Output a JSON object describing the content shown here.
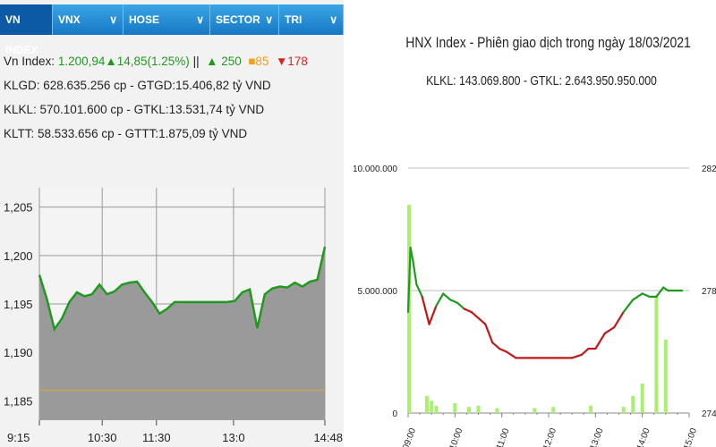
{
  "tabs": [
    {
      "label": "VN INDEX",
      "active": true
    },
    {
      "label": "VNX",
      "dropdown": true
    },
    {
      "label": "HOSE",
      "dropdown": true
    },
    {
      "label": "SECTOR",
      "dropdown": true
    },
    {
      "label": "TRI",
      "dropdown": true
    }
  ],
  "vn_index": {
    "label": "Vn Index:",
    "value": "1.200,94",
    "change": "▲14,85(1.25%)",
    "sep": "||",
    "up": "▲ 250",
    "flat": "■85",
    "down": "▼178",
    "klgd": "KLGD: 628.635.256 cp - GTGD:15.406,82 tỷ VND",
    "klkl": "KLKL: 570.101.600 cp - GTKL:13.531,74 tỷ VND",
    "kltt": "KLTT: 58.533.656 cp - GTTT:1.875,09 tỷ VND"
  },
  "hnx": {
    "title": "HNX Index - Phiên giao dịch trong ngày 18/03/2021",
    "subtitle": "KLKL: 143.069.800 - GTKL: 2.643.950.950.000"
  },
  "colors": {
    "tab_bg": "#1777c4",
    "up": "#1f9a1f",
    "down": "#c01818",
    "ref_line": "#c8a060",
    "volume": "#a8f070",
    "area": "#9a9a9a"
  },
  "chart_data": [
    {
      "type": "area",
      "x_ticks": [
        "9:15",
        "10:30",
        "11:30",
        "13:0",
        "14:48"
      ],
      "y_ticks": [
        "1,205",
        "1,200",
        "1,195",
        "1,190",
        "1,185"
      ],
      "ylim": [
        1183,
        1207
      ],
      "reference": 1186.09,
      "x": [
        0,
        1,
        2,
        3,
        4,
        5,
        6,
        7,
        8,
        9,
        10,
        11,
        12,
        13,
        14,
        15,
        16,
        17,
        18,
        19,
        20,
        21,
        22,
        23,
        24,
        25,
        26,
        27,
        28,
        29,
        30,
        31,
        32,
        33,
        34,
        35,
        36,
        37,
        38
      ],
      "values": [
        1198.0,
        1195.5,
        1192.4,
        1193.5,
        1195.2,
        1196.2,
        1195.8,
        1196.0,
        1197.0,
        1196.0,
        1196.3,
        1197.0,
        1197.2,
        1197.3,
        1196.2,
        1195.2,
        1194.0,
        1194.5,
        1195.2,
        1195.2,
        1195.2,
        1195.2,
        1195.2,
        1195.2,
        1195.2,
        1195.2,
        1195.3,
        1196.2,
        1196.5,
        1192.5,
        1196.0,
        1196.6,
        1196.8,
        1196.7,
        1197.2,
        1196.8,
        1197.3,
        1197.5,
        1200.9
      ]
    },
    {
      "type": "line",
      "x_ticks": [
        "09:00",
        "10:00",
        "11:00",
        "12:00",
        "13:00",
        "14:00",
        "15:00"
      ],
      "y_left_ticks": [
        "10.000.000",
        "5.000.000",
        "0"
      ],
      "y_right_ticks": [
        "282",
        "278",
        "274"
      ],
      "y_left_lim": [
        0,
        10000000
      ],
      "y_right_lim": [
        274,
        282
      ],
      "reference": 277.45,
      "index": {
        "x": [
          0.0,
          0.05,
          0.1,
          0.18,
          0.3,
          0.45,
          0.6,
          0.75,
          0.9,
          1.05,
          1.2,
          1.35,
          1.5,
          1.65,
          1.8,
          1.95,
          2.1,
          2.3,
          2.5,
          2.75,
          3.0,
          3.25,
          3.5,
          3.7,
          3.85,
          4.0,
          4.2,
          4.4,
          4.6,
          4.8,
          5.0,
          5.15,
          5.3,
          5.45,
          5.55,
          5.7,
          5.85
        ],
        "y": [
          277.3,
          279.4,
          279.0,
          278.2,
          277.8,
          276.9,
          277.5,
          277.9,
          277.7,
          277.6,
          277.4,
          277.3,
          277.1,
          276.9,
          276.3,
          276.1,
          276.0,
          275.8,
          275.8,
          275.8,
          275.8,
          275.8,
          275.8,
          275.9,
          276.1,
          276.1,
          276.6,
          276.8,
          277.3,
          277.7,
          277.9,
          277.8,
          277.8,
          278.1,
          278.0,
          278.0,
          278.0
        ]
      },
      "volume": {
        "x": [
          0.02,
          0.4,
          0.5,
          0.6,
          1.0,
          1.3,
          1.5,
          1.9,
          2.7,
          3.1,
          3.9,
          4.6,
          4.8,
          5.0,
          5.3,
          5.5
        ],
        "y": [
          8500000,
          700000,
          500000,
          300000,
          400000,
          250000,
          300000,
          200000,
          200000,
          250000,
          300000,
          250000,
          700000,
          1200000,
          4800000,
          3000000
        ]
      }
    }
  ]
}
